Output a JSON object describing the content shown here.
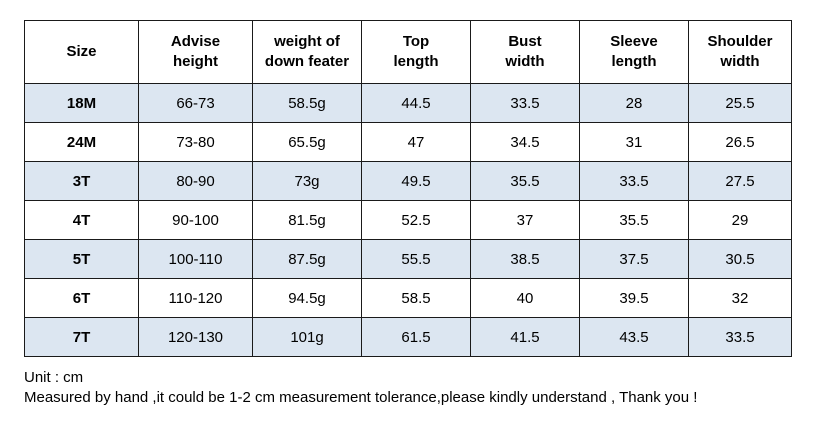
{
  "table": {
    "headers": [
      "Size",
      "Advise\nheight",
      "weight of\ndown feater",
      "Top\nlength",
      "Bust\nwidth",
      "Sleeve\nlength",
      "Shoulder\nwidth"
    ],
    "rows": [
      [
        "18M",
        "66-73",
        "58.5g",
        "44.5",
        "33.5",
        "28",
        "25.5"
      ],
      [
        "24M",
        "73-80",
        "65.5g",
        "47",
        "34.5",
        "31",
        "26.5"
      ],
      [
        "3T",
        "80-90",
        "73g",
        "49.5",
        "35.5",
        "33.5",
        "27.5"
      ],
      [
        "4T",
        "90-100",
        "81.5g",
        "52.5",
        "37",
        "35.5",
        "29"
      ],
      [
        "5T",
        "100-110",
        "87.5g",
        "55.5",
        "38.5",
        "37.5",
        "30.5"
      ],
      [
        "6T",
        "110-120",
        "94.5g",
        "58.5",
        "40",
        "39.5",
        "32"
      ],
      [
        "7T",
        "120-130",
        "101g",
        "61.5",
        "41.5",
        "43.5",
        "33.5"
      ]
    ],
    "shaded_row_color": "#dce6f1",
    "border_color": "#1a1a1a"
  },
  "notes": {
    "unit": "Unit : cm",
    "disclaimer": "Measured by hand ,it could be 1-2 cm measurement tolerance,please kindly understand , Thank you !"
  }
}
